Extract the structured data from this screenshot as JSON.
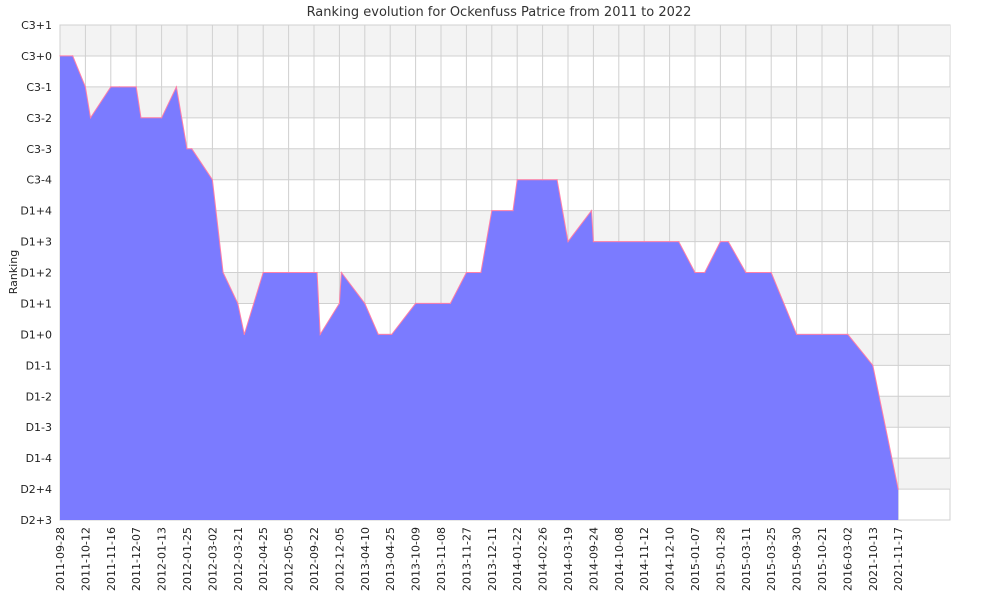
{
  "chart_data": {
    "type": "area",
    "title": "Ranking evolution for Ockenfuss Patrice from 2011 to 2022",
    "ylabel": "Ranking",
    "xlabel": "",
    "y_categories": [
      "D2+3",
      "D2+4",
      "D1-4",
      "D1-3",
      "D1-2",
      "D1-1",
      "D1+0",
      "D1+1",
      "D1+2",
      "D1+3",
      "D1+4",
      "C3-4",
      "C3-3",
      "C3-2",
      "C3-1",
      "C3+0",
      "C3+1"
    ],
    "x_labels": [
      "2011-09-28",
      "2011-10-12",
      "2011-11-16",
      "2011-12-07",
      "2012-01-13",
      "2012-01-25",
      "2012-03-02",
      "2012-03-21",
      "2012-04-25",
      "2012-05-05",
      "2012-09-22",
      "2012-12-05",
      "2013-04-10",
      "2013-04-25",
      "2013-10-09",
      "2013-11-08",
      "2013-11-27",
      "2013-12-11",
      "2014-01-22",
      "2014-02-26",
      "2014-03-19",
      "2014-09-24",
      "2014-10-08",
      "2014-11-12",
      "2014-12-10",
      "2015-01-07",
      "2015-01-28",
      "2015-03-11",
      "2015-03-25",
      "2015-09-30",
      "2015-10-21",
      "2016-03-02",
      "2021-10-13",
      "2021-11-17"
    ],
    "series": [
      {
        "points": [
          {
            "x": "2011-09-28",
            "y": "C3+0"
          },
          {
            "x": "2011-10-05",
            "y": "C3+0"
          },
          {
            "x": "2011-10-12",
            "y": "C3-1"
          },
          {
            "x": "2011-10-19",
            "y": "C3-2"
          },
          {
            "x": "2011-11-16",
            "y": "C3-1"
          },
          {
            "x": "2011-11-23",
            "y": "C3-1"
          },
          {
            "x": "2011-12-07",
            "y": "C3-1"
          },
          {
            "x": "2011-12-14",
            "y": "C3-2"
          },
          {
            "x": "2012-01-13",
            "y": "C3-2"
          },
          {
            "x": "2012-01-20",
            "y": "C3-1"
          },
          {
            "x": "2012-01-25",
            "y": "C3-3"
          },
          {
            "x": "2012-02-01",
            "y": "C3-3"
          },
          {
            "x": "2012-03-02",
            "y": "C3-4"
          },
          {
            "x": "2012-03-10",
            "y": "D1+2"
          },
          {
            "x": "2012-03-21",
            "y": "D1+1"
          },
          {
            "x": "2012-03-30",
            "y": "D1+0"
          },
          {
            "x": "2012-04-25",
            "y": "D1+2"
          },
          {
            "x": "2012-05-05",
            "y": "D1+2"
          },
          {
            "x": "2012-09-22",
            "y": "D1+2"
          },
          {
            "x": "2012-10-01",
            "y": "D1+2"
          },
          {
            "x": "2012-10-10",
            "y": "D1+0"
          },
          {
            "x": "2012-12-05",
            "y": "D1+1"
          },
          {
            "x": "2012-12-15",
            "y": "D1+2"
          },
          {
            "x": "2013-04-10",
            "y": "D1+1"
          },
          {
            "x": "2013-04-18",
            "y": "D1+0"
          },
          {
            "x": "2013-04-25",
            "y": "D1+0"
          },
          {
            "x": "2013-05-05",
            "y": "D1+0"
          },
          {
            "x": "2013-10-09",
            "y": "D1+1"
          },
          {
            "x": "2013-11-08",
            "y": "D1+1"
          },
          {
            "x": "2013-11-15",
            "y": "D1+1"
          },
          {
            "x": "2013-11-27",
            "y": "D1+2"
          },
          {
            "x": "2013-12-05",
            "y": "D1+2"
          },
          {
            "x": "2013-12-11",
            "y": "D1+4"
          },
          {
            "x": "2014-01-15",
            "y": "D1+4"
          },
          {
            "x": "2014-01-22",
            "y": "C3-4"
          },
          {
            "x": "2014-02-26",
            "y": "C3-4"
          },
          {
            "x": "2014-03-10",
            "y": "C3-4"
          },
          {
            "x": "2014-03-19",
            "y": "D1+3"
          },
          {
            "x": "2014-09-10",
            "y": "D1+4"
          },
          {
            "x": "2014-09-24",
            "y": "D1+3"
          },
          {
            "x": "2014-10-08",
            "y": "D1+3"
          },
          {
            "x": "2014-11-12",
            "y": "D1+3"
          },
          {
            "x": "2014-12-10",
            "y": "D1+3"
          },
          {
            "x": "2014-12-20",
            "y": "D1+3"
          },
          {
            "x": "2015-01-07",
            "y": "D1+2"
          },
          {
            "x": "2015-01-15",
            "y": "D1+2"
          },
          {
            "x": "2015-01-28",
            "y": "D1+3"
          },
          {
            "x": "2015-02-10",
            "y": "D1+3"
          },
          {
            "x": "2015-03-11",
            "y": "D1+2"
          },
          {
            "x": "2015-03-25",
            "y": "D1+2"
          },
          {
            "x": "2015-09-30",
            "y": "D1+0"
          },
          {
            "x": "2015-10-21",
            "y": "D1+0"
          },
          {
            "x": "2016-03-02",
            "y": "D1+0"
          },
          {
            "x": "2016-04-01",
            "y": "D1+0"
          },
          {
            "x": "2021-10-13",
            "y": "D1-1"
          },
          {
            "x": "2021-11-17",
            "y": "D2+4"
          }
        ]
      }
    ],
    "colors": {
      "fill": "#7b7bff",
      "line": "#ff7fa8",
      "band_alt": "#f3f3f3",
      "grid": "#d0d0d0"
    },
    "grid": true,
    "legend": "none"
  }
}
